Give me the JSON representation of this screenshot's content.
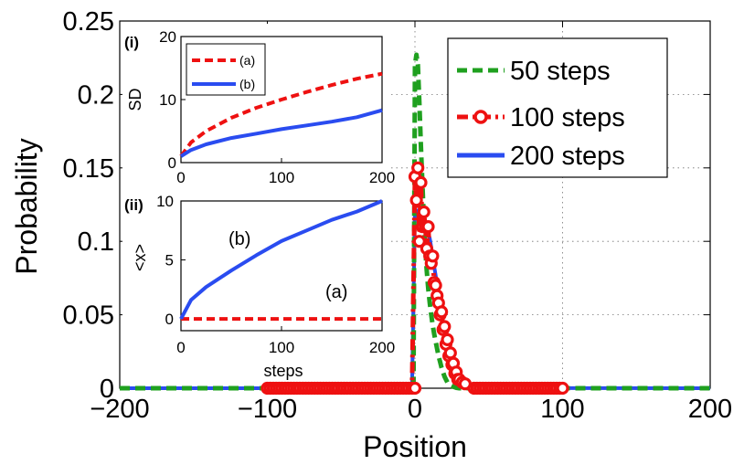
{
  "chart_data": {
    "main": {
      "type": "line",
      "xlabel": "Position",
      "ylabel": "Probability",
      "xlim": [
        -200,
        200
      ],
      "ylim": [
        0,
        0.25
      ],
      "xticks": [
        -200,
        -100,
        0,
        100,
        200
      ],
      "xtick_labels": [
        "−200",
        "−100",
        "0",
        "100",
        "200"
      ],
      "yticks": [
        0,
        0.05,
        0.1,
        0.15,
        0.2,
        0.25
      ],
      "ytick_labels": [
        "0",
        "0.05",
        "0.1",
        "0.15",
        "0.2",
        "0.25"
      ],
      "grid": true,
      "legend_position": "top-right",
      "series": [
        {
          "name": "50 steps",
          "color": "#1fa01f",
          "style": "dashed",
          "x": [
            -200,
            -1,
            0,
            1,
            2,
            3,
            4,
            5,
            6,
            7,
            8,
            9,
            10,
            11,
            12,
            13,
            14,
            15,
            16,
            17,
            18,
            19,
            20,
            21,
            22,
            24,
            26,
            28,
            30,
            200
          ],
          "y": [
            0,
            0,
            0.22,
            0.227,
            0.22,
            0.195,
            0.165,
            0.14,
            0.115,
            0.095,
            0.08,
            0.068,
            0.058,
            0.05,
            0.043,
            0.037,
            0.032,
            0.027,
            0.022,
            0.018,
            0.014,
            0.011,
            0.008,
            0.006,
            0.004,
            0.002,
            0.001,
            0.0003,
            0,
            0
          ]
        },
        {
          "name": "100 steps",
          "color": "#ee1111",
          "style": "dash-dot with circle markers",
          "x": [
            -100,
            -2,
            0,
            1,
            2,
            3,
            4,
            5,
            6,
            7,
            8,
            9,
            10,
            11,
            12,
            13,
            14,
            15,
            16,
            17,
            18,
            19,
            20,
            21,
            22,
            23,
            24,
            25,
            26,
            27,
            28,
            29,
            30,
            32,
            34,
            36,
            38,
            40,
            100
          ],
          "y": [
            0,
            0,
            0.144,
            0.128,
            0.15,
            0.1,
            0.14,
            0.11,
            0.12,
            0.11,
            0.095,
            0.11,
            0.09,
            0.085,
            0.09,
            0.072,
            0.07,
            0.063,
            0.058,
            0.05,
            0.052,
            0.04,
            0.042,
            0.03,
            0.033,
            0.022,
            0.024,
            0.016,
            0.017,
            0.01,
            0.011,
            0.006,
            0.006,
            0.004,
            0.003,
            0.002,
            0.001,
            0.0005,
            0
          ]
        },
        {
          "name": "200 steps",
          "color": "#2a4cf0",
          "style": "solid",
          "x": [
            -200,
            -2,
            0,
            1,
            2,
            3,
            4,
            5,
            6,
            7,
            8,
            9,
            10,
            11,
            12,
            13,
            14,
            15,
            16,
            17,
            18,
            19,
            20,
            21,
            22,
            23,
            24,
            25,
            26,
            27,
            28,
            29,
            30,
            32,
            34,
            36,
            38,
            40,
            45,
            50,
            200
          ],
          "y": [
            0,
            0,
            0.12,
            0.118,
            0.121,
            0.115,
            0.118,
            0.113,
            0.115,
            0.11,
            0.112,
            0.106,
            0.102,
            0.096,
            0.09,
            0.083,
            0.077,
            0.07,
            0.064,
            0.057,
            0.05,
            0.044,
            0.038,
            0.033,
            0.028,
            0.024,
            0.021,
            0.018,
            0.015,
            0.012,
            0.01,
            0.008,
            0.007,
            0.005,
            0.003,
            0.002,
            0.0012,
            0.0007,
            0.0003,
            0.0001,
            0
          ]
        }
      ]
    },
    "inset_i": {
      "type": "line",
      "panel_label": "(i)",
      "xlabel": "",
      "ylabel": "SD",
      "xlim": [
        0,
        200
      ],
      "ylim": [
        0,
        20
      ],
      "xticks": [
        0,
        100,
        200
      ],
      "xtick_labels": [
        "0",
        "100",
        "200"
      ],
      "yticks": [
        0,
        10,
        20
      ],
      "ytick_labels": [
        "0",
        "10",
        "20"
      ],
      "legend_position": "top-left",
      "series": [
        {
          "name": "(a)",
          "color": "#ee1111",
          "style": "dashed",
          "x": [
            0,
            10,
            25,
            50,
            75,
            100,
            125,
            150,
            175,
            200
          ],
          "y": [
            1,
            3.2,
            5.0,
            7.1,
            8.7,
            10.0,
            11.2,
            12.3,
            13.3,
            14.1
          ]
        },
        {
          "name": "(b)",
          "color": "#2a4cf0",
          "style": "solid",
          "x": [
            0,
            10,
            25,
            50,
            75,
            100,
            125,
            150,
            175,
            200
          ],
          "y": [
            1,
            2.0,
            2.9,
            3.9,
            4.6,
            5.3,
            5.9,
            6.5,
            7.2,
            8.3
          ]
        }
      ]
    },
    "inset_ii": {
      "type": "line",
      "panel_label": "(ii)",
      "xlabel": "steps",
      "ylabel": "<x>",
      "xlim": [
        0,
        200
      ],
      "ylim": [
        -1,
        10
      ],
      "xticks": [
        0,
        100,
        200
      ],
      "xtick_labels": [
        "0",
        "100",
        "200"
      ],
      "yticks": [
        0,
        5,
        10
      ],
      "ytick_labels": [
        "0",
        "5",
        "10"
      ],
      "annotations": [
        "(b)",
        "(a)"
      ],
      "series": [
        {
          "name": "(a)",
          "color": "#ee1111",
          "style": "dashed",
          "x": [
            0,
            200
          ],
          "y": [
            0,
            0
          ]
        },
        {
          "name": "(b)",
          "color": "#2a4cf0",
          "style": "solid",
          "x": [
            0,
            10,
            25,
            50,
            75,
            100,
            125,
            150,
            175,
            200
          ],
          "y": [
            0,
            1.6,
            2.7,
            4.1,
            5.4,
            6.6,
            7.5,
            8.4,
            9.1,
            10.0
          ]
        }
      ]
    }
  }
}
